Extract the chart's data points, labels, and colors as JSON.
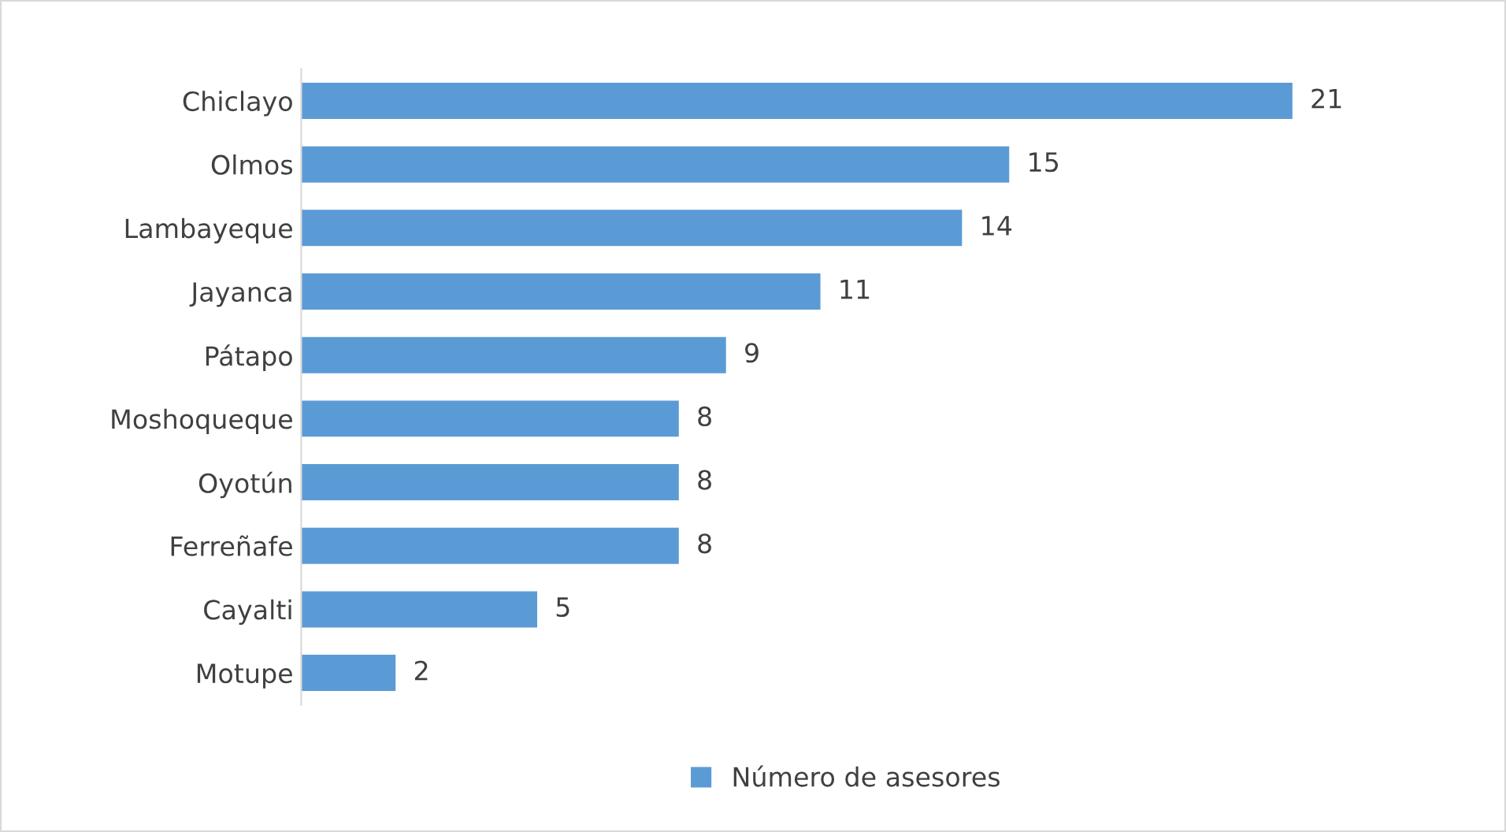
{
  "chart_data": {
    "type": "bar",
    "orientation": "horizontal",
    "categories": [
      "Chiclayo",
      "Olmos",
      "Lambayeque",
      "Jayanca",
      "Pátapo",
      "Moshoqueque",
      "Oyotún",
      "Ferreñafe",
      "Cayalti",
      "Motupe"
    ],
    "series": [
      {
        "name": "Número de asesores",
        "color": "#5b9bd5",
        "values": [
          21,
          15,
          14,
          11,
          9,
          8,
          8,
          8,
          5,
          2
        ]
      }
    ],
    "data_labels": true,
    "legend": "bottom",
    "grid": false,
    "tick_labels": "y"
  }
}
